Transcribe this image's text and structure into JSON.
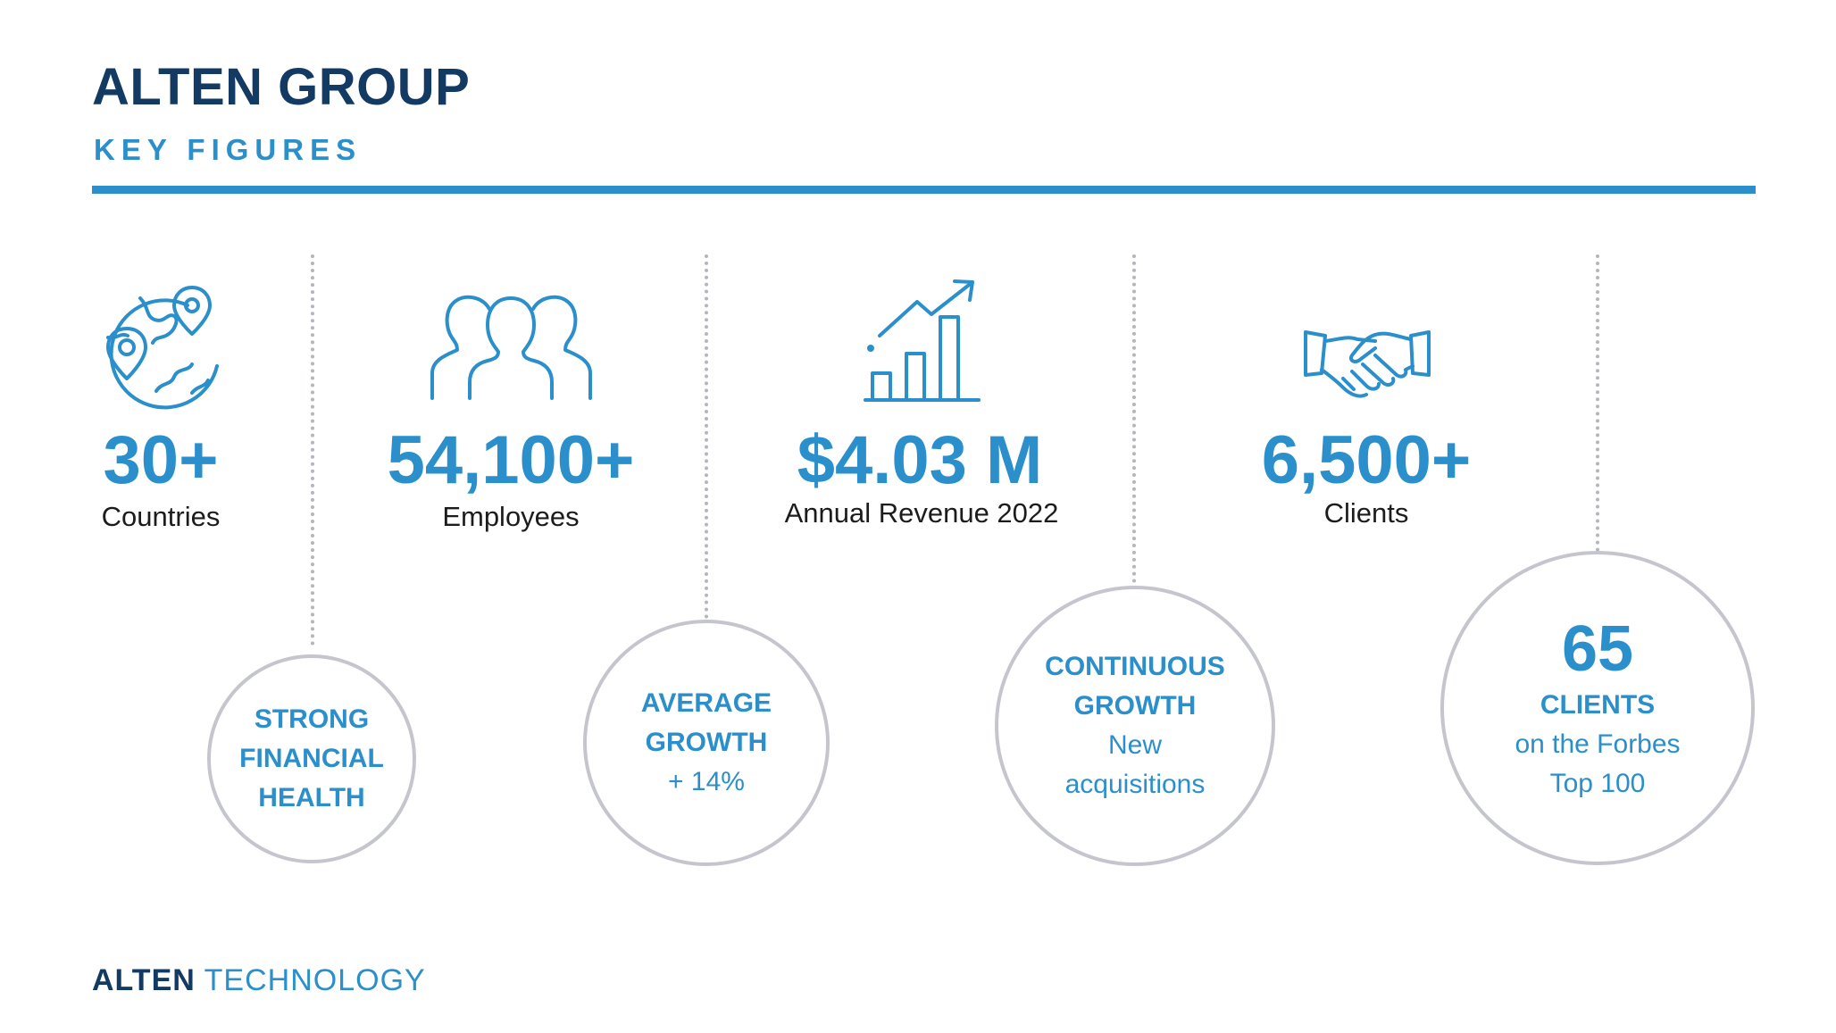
{
  "header": {
    "title": "ALTEN GROUP",
    "subtitle": "KEY FIGURES"
  },
  "figures": [
    {
      "value": "30+",
      "label": "Countries",
      "icon": "globe-location-icon"
    },
    {
      "value": "54,100+",
      "label": "Employees",
      "icon": "people-icon"
    },
    {
      "value": "$4.03 M",
      "label": "Annual Revenue 2022",
      "icon": "growth-chart-icon"
    },
    {
      "value": "6,500+",
      "label": "Clients",
      "icon": "handshake-icon"
    }
  ],
  "highlights": [
    {
      "lines": [
        "STRONG",
        "FINANCIAL",
        "HEALTH"
      ]
    },
    {
      "lines": [
        "AVERAGE",
        "GROWTH"
      ],
      "detail": "+ 14%"
    },
    {
      "lines": [
        "CONTINUOUS",
        "GROWTH"
      ],
      "detail_lines": [
        "New",
        "acquisitions"
      ]
    },
    {
      "number": "65",
      "lines": [
        "CLIENTS"
      ],
      "detail_lines": [
        "on the Forbes",
        "Top 100"
      ]
    }
  ],
  "footer": {
    "brand_primary": "ALTEN",
    "brand_secondary": "TECHNOLOGY"
  },
  "colors": {
    "navy": "#123a63",
    "accent_blue": "#2a8fcb",
    "circle_border": "#c5c6cd"
  }
}
